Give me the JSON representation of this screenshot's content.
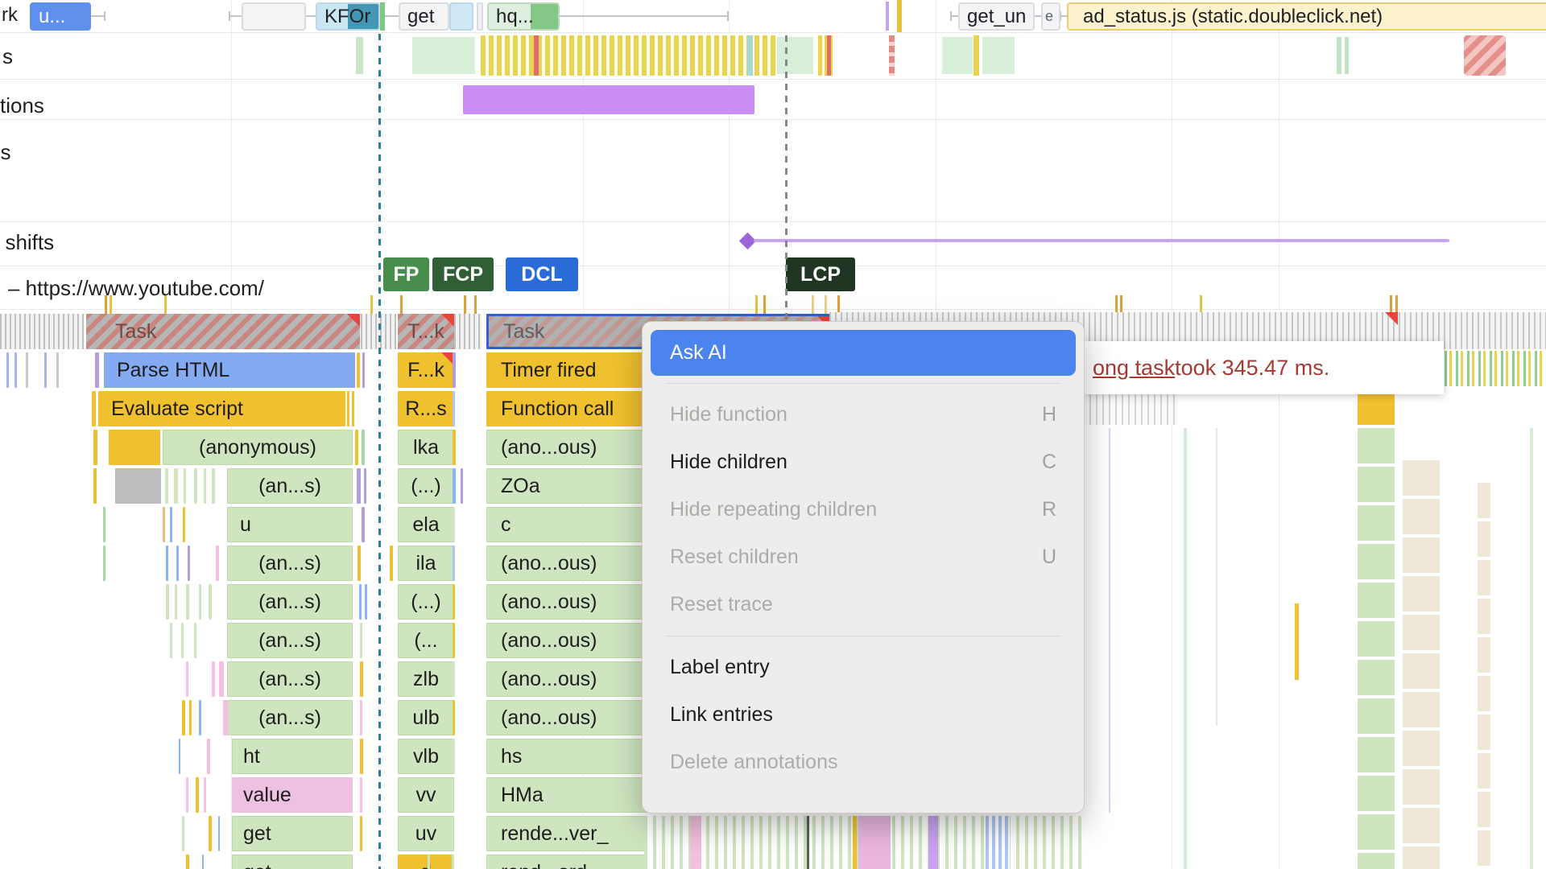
{
  "network": {
    "left_text": "rk",
    "requests": [
      {
        "label": "u...",
        "kind": "doc"
      },
      {
        "label": "",
        "kind": "gray"
      },
      {
        "label": "KFOr",
        "kind": "font"
      },
      {
        "label": "get",
        "kind": "gray"
      },
      {
        "label": "hq...",
        "kind": "image"
      },
      {
        "label": "get_un",
        "kind": "gray"
      },
      {
        "label": "e",
        "kind": "tiny"
      },
      {
        "label": "ad_status.js (static.doubleclick.net)",
        "kind": "highlight"
      }
    ]
  },
  "tracks": {
    "frames_label": "s",
    "interactions_label": "tions",
    "timings_label": "gs",
    "shifts_label": "t shifts",
    "main_label": "– https://www.youtube.com/"
  },
  "timings": {
    "markers": [
      {
        "label": "FP",
        "color": "#478d4c"
      },
      {
        "label": "FCP",
        "color": "#315f35"
      },
      {
        "label": "DCL",
        "color": "#2a6bd8"
      },
      {
        "label": "LCP",
        "color": "#203622"
      }
    ]
  },
  "flame": {
    "col1": [
      "Task",
      "Parse HTML",
      "Evaluate script",
      "(anonymous)",
      "(an...s)",
      "u",
      "(an...s)",
      "(an...s)",
      "(an...s)",
      "(an...s)",
      "(an...s)",
      "ht",
      "value",
      "get",
      "get"
    ],
    "col2": [
      "T...k",
      "F...k",
      "R...s",
      "lka",
      "(...)",
      "ela",
      "ila",
      "(...)",
      "(...",
      "zlb",
      "ulb",
      "vlb",
      "vv",
      "uv",
      "d"
    ],
    "col3": [
      "Task",
      "Timer fired",
      "Function call",
      "(ano...ous)",
      "ZOa",
      "c",
      "(ano...ous)",
      "(ano...ous)",
      "(ano...ous)",
      "(ano...ous)",
      "(ano...ous)",
      "hs",
      "HMa",
      "rende...ver_",
      "rend...ord"
    ]
  },
  "context_menu": {
    "items": [
      {
        "type": "primary",
        "label": "Ask AI"
      },
      {
        "type": "separator"
      },
      {
        "type": "item",
        "label": "Hide function",
        "shortcut": "H",
        "enabled": false
      },
      {
        "type": "item",
        "label": "Hide children",
        "shortcut": "C",
        "enabled": true
      },
      {
        "type": "item",
        "label": "Hide repeating children",
        "shortcut": "R",
        "enabled": false
      },
      {
        "type": "item",
        "label": "Reset children",
        "shortcut": "U",
        "enabled": false
      },
      {
        "type": "item",
        "label": "Reset trace",
        "shortcut": "",
        "enabled": false
      },
      {
        "type": "separator"
      },
      {
        "type": "item",
        "label": "Label entry",
        "shortcut": "",
        "enabled": true
      },
      {
        "type": "item",
        "label": "Link entries",
        "shortcut": "",
        "enabled": true
      },
      {
        "type": "item",
        "label": "Delete annotations",
        "shortcut": "",
        "enabled": false
      }
    ]
  },
  "tooltip": {
    "link_text": "ong task",
    "rest_text": " took 345.47 ms."
  },
  "colors": {
    "accent_blue": "#4c84ee",
    "long_task_red": "#e8453c",
    "shift_purple": "#c9a2f2",
    "scripting_yellow": "#f0c12f",
    "system_green": "#cfe5bf"
  }
}
